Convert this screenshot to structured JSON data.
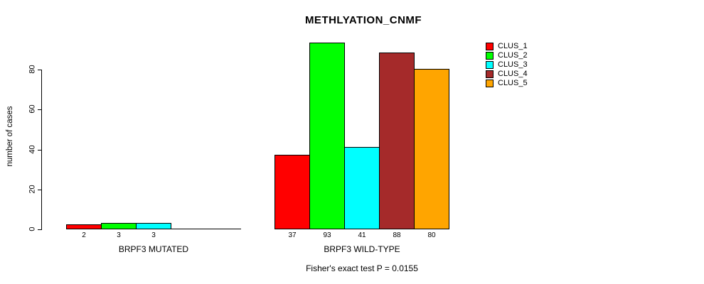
{
  "title": "METHLYATION_CNMF",
  "chart_data": {
    "type": "bar",
    "title": "METHLYATION_CNMF",
    "ylabel": "number of cases",
    "xlabel": "",
    "ylim": [
      0,
      95
    ],
    "yticks": [
      0,
      20,
      40,
      60,
      80
    ],
    "grid": false,
    "legend_position": "right",
    "legend": [
      {
        "label": "CLUS_1",
        "color": "#FF0000"
      },
      {
        "label": "CLUS_2",
        "color": "#00FF00"
      },
      {
        "label": "CLUS_3",
        "color": "#00FFFF"
      },
      {
        "label": "CLUS_4",
        "color": "#A52A2A"
      },
      {
        "label": "CLUS_5",
        "color": "#FFA500"
      }
    ],
    "groups": [
      {
        "label": "BRPF3 MUTATED",
        "values": [
          2,
          3,
          3,
          0,
          0
        ],
        "bar_labels": [
          "2",
          "3",
          "3",
          "",
          ""
        ]
      },
      {
        "label": "BRPF3 WILD-TYPE",
        "values": [
          37,
          93,
          41,
          88,
          80
        ],
        "bar_labels": [
          "37",
          "93",
          "41",
          "88",
          "80"
        ]
      }
    ],
    "caption": "Fisher's exact test P = 0.0155"
  }
}
